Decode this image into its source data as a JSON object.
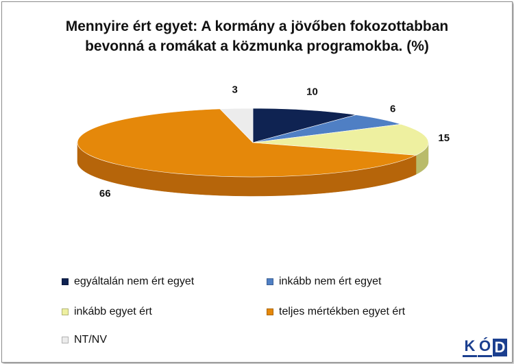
{
  "title": "Mennyire ért egyet: A kormány a jövőben fokozottabban bevonná a romákat a közmunka programokba. (%)",
  "chart_data": {
    "type": "pie",
    "title": "Mennyire ért egyet: A kormány a jövőben fokozottabban bevonná a romákat a közmunka programokba. (%)",
    "categories": [
      "egyáltalán nem ért egyet",
      "inkább nem ért egyet",
      "inkább egyet ért",
      "teljes mértékben egyet ért",
      "NT/NV"
    ],
    "values": [
      10,
      6,
      15,
      66,
      3
    ],
    "colors": [
      "#0f2352",
      "#4f7fc4",
      "#eef0a0",
      "#e5880a",
      "#ececec"
    ],
    "side_colors": [
      "#081535",
      "#2f5a95",
      "#b9bb6a",
      "#b6650a",
      "#bdbdbd"
    ],
    "legend_position": "bottom"
  },
  "legend": [
    {
      "label": "egyáltalán nem ért egyet",
      "color": "#0f2352"
    },
    {
      "label": "inkább nem ért egyet",
      "color": "#4f7fc4"
    },
    {
      "label": "inkább egyet ért",
      "color": "#eef0a0"
    },
    {
      "label": "teljes mértékben egyet ért",
      "color": "#e5880a"
    },
    {
      "label": "NT/NV",
      "color": "#ececec"
    }
  ],
  "logo": {
    "letters": [
      "K",
      "Ó",
      "D"
    ]
  }
}
